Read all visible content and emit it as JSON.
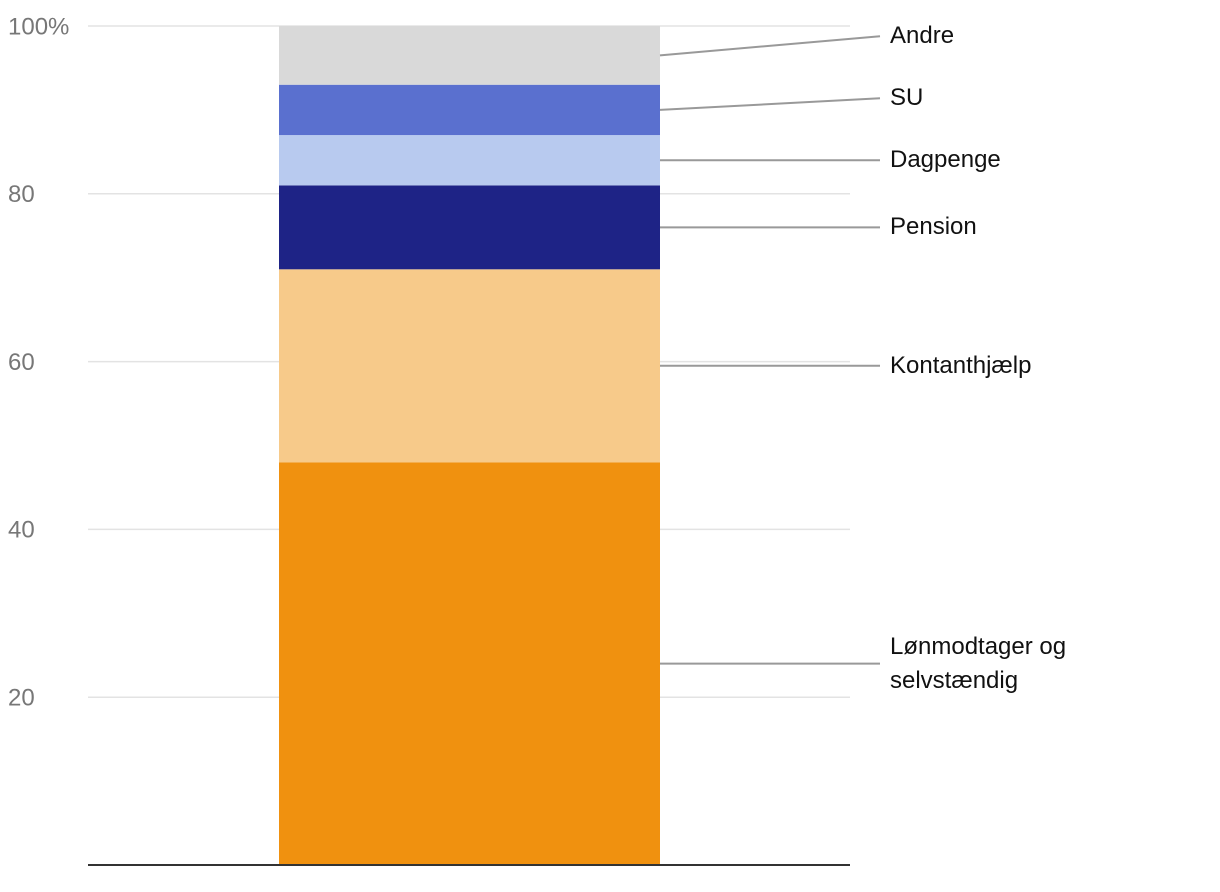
{
  "chart_data": {
    "type": "stacked-bar",
    "categories": [
      null
    ],
    "series": [
      {
        "name": "Lønmodtager og selvstændig",
        "color": "#f0910f",
        "values": [
          48
        ]
      },
      {
        "name": "Kontanthjælp",
        "color": "#f7ca8a",
        "values": [
          23
        ]
      },
      {
        "name": "Pension",
        "color": "#1e2386",
        "values": [
          10
        ]
      },
      {
        "name": "Dagpenge",
        "color": "#b8caef",
        "values": [
          6
        ]
      },
      {
        "name": "SU",
        "color": "#5a70cf",
        "values": [
          6
        ]
      },
      {
        "name": "Andre",
        "color": "#d9d9d9",
        "values": [
          7
        ]
      }
    ],
    "ylim": [
      0,
      100
    ],
    "yticks": [
      20,
      40,
      60,
      80,
      {
        "value": 100,
        "label": "100%"
      }
    ],
    "grid": true
  }
}
